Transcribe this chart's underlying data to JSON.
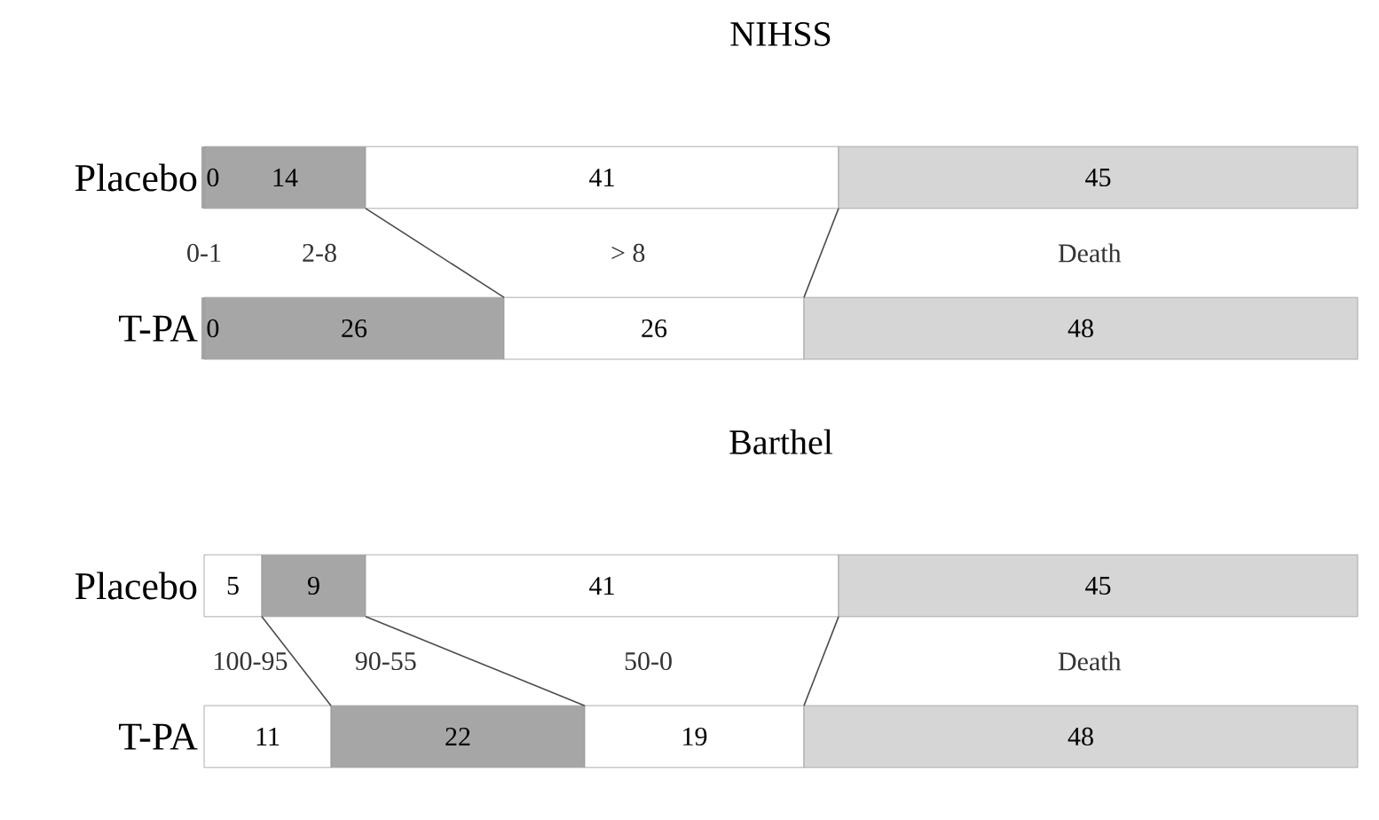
{
  "chart_data": [
    {
      "type": "bar",
      "title": "NIHSS",
      "orientation": "horizontal",
      "stacked": true,
      "data_labels": true,
      "tick_labels": "y",
      "categories": [
        "Placebo",
        "T-PA"
      ],
      "series": [
        {
          "name": "0-1",
          "color": "#a6a6a6",
          "values": [
            0,
            0
          ]
        },
        {
          "name": "2-8",
          "color": "#a6a6a6",
          "values": [
            14,
            26
          ]
        },
        {
          "name": "> 8",
          "color": "#ffffff",
          "values": [
            41,
            26
          ]
        },
        {
          "name": "Death",
          "color": "#d6d6d6",
          "values": [
            45,
            48
          ]
        }
      ]
    },
    {
      "type": "bar",
      "title": "Barthel",
      "orientation": "horizontal",
      "stacked": true,
      "data_labels": true,
      "tick_labels": "y",
      "categories": [
        "Placebo",
        "T-PA"
      ],
      "series": [
        {
          "name": "100-95",
          "color": "#ffffff",
          "values": [
            5,
            11
          ]
        },
        {
          "name": "90-55",
          "color": "#a6a6a6",
          "values": [
            9,
            22
          ]
        },
        {
          "name": "50-0",
          "color": "#ffffff",
          "values": [
            41,
            19
          ]
        },
        {
          "name": "Death",
          "color": "#d6d6d6",
          "values": [
            45,
            48
          ]
        }
      ]
    }
  ]
}
